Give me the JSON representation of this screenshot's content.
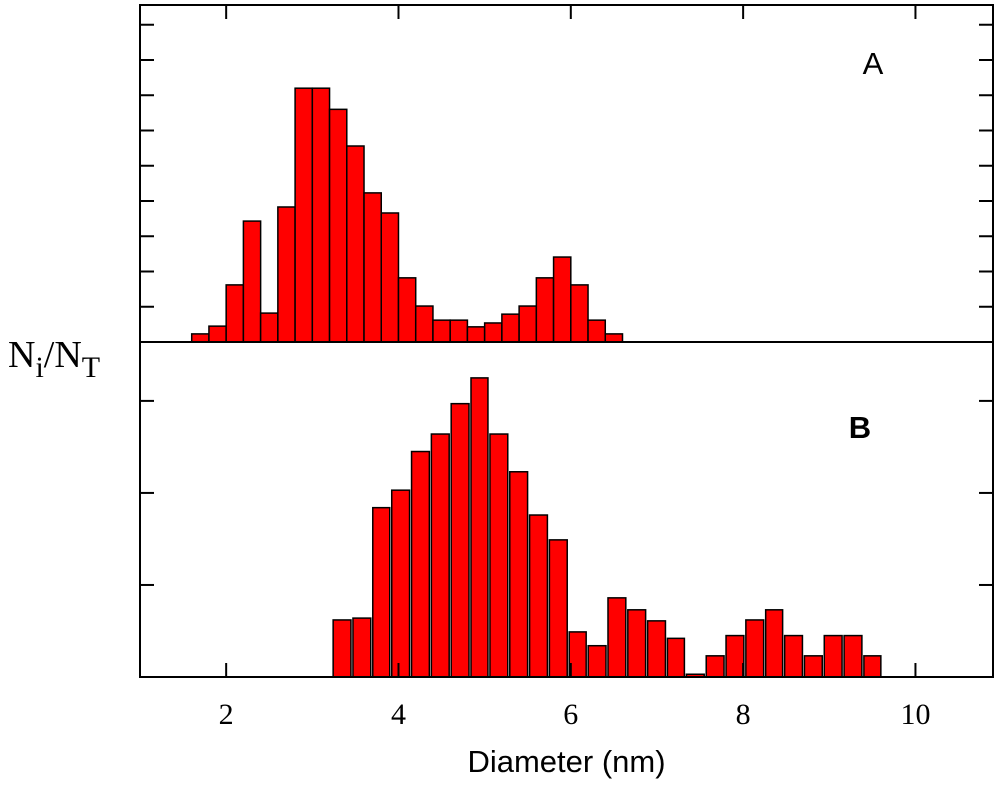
{
  "chart_data": [
    {
      "type": "histogram",
      "annotation": "A",
      "color": "#ff0000",
      "bins": [
        1.6,
        1.8,
        2.0,
        2.2,
        2.4,
        2.6,
        2.8,
        3.0,
        3.2,
        3.4,
        3.6,
        3.8,
        4.0,
        4.2,
        4.4,
        4.6,
        4.8,
        5.0,
        5.2,
        5.4,
        5.6,
        5.8,
        6.0,
        6.2,
        6.4,
        6.6
      ],
      "values": [
        0.23,
        0.45,
        1.62,
        3.43,
        0.82,
        3.83,
        7.2,
        7.2,
        6.6,
        5.56,
        4.23,
        3.66,
        1.82,
        1.02,
        0.62,
        0.62,
        0.43,
        0.54,
        0.79,
        1.02,
        1.82,
        2.41,
        1.62,
        0.62,
        0.23
      ],
      "xlim": [
        1.0,
        10.9
      ],
      "xticks": [
        2,
        4,
        6,
        8,
        10
      ],
      "ylim": [
        0,
        9.56
      ],
      "yticks": [
        1,
        2,
        3,
        4,
        5,
        6,
        7,
        8,
        9
      ]
    },
    {
      "type": "histogram",
      "annotation": "B",
      "color": "#ff0000",
      "bins": [
        3.23,
        3.46,
        3.69,
        3.91,
        4.14,
        4.37,
        4.6,
        4.83,
        5.05,
        5.28,
        5.51,
        5.74,
        5.97,
        6.19,
        6.42,
        6.65,
        6.88,
        7.11,
        7.33,
        7.56,
        7.79,
        8.02,
        8.25,
        8.47,
        8.7,
        8.93,
        9.16,
        9.39,
        9.61
      ],
      "values": [
        0.62,
        0.64,
        1.84,
        2.03,
        2.45,
        2.64,
        2.97,
        3.25,
        2.64,
        2.23,
        1.76,
        1.49,
        0.49,
        0.34,
        0.86,
        0.73,
        0.61,
        0.42,
        0.03,
        0.23,
        0.45,
        0.62,
        0.73,
        0.45,
        0.23,
        0.45,
        0.45,
        0.23
      ],
      "xlim": [
        1.0,
        10.9
      ],
      "xticks": [
        2,
        4,
        6,
        8,
        10
      ],
      "ylim": [
        0,
        3.64
      ],
      "yticks": [
        1,
        2,
        3
      ],
      "x_label": "Diameter (nm)",
      "y_label": [
        "N",
        "i",
        "/N",
        "T"
      ]
    }
  ]
}
